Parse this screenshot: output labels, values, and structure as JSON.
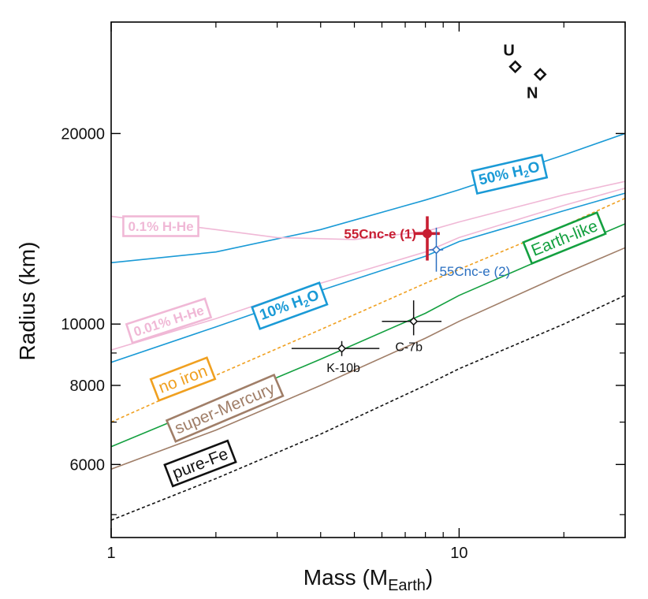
{
  "chart_data": {
    "type": "line",
    "title": "",
    "xlabel": "Mass (M",
    "xlabel_sub": "Earth",
    "xlabel_close": ")",
    "ylabel": "Radius (km)",
    "xscale": "log",
    "yscale": "log",
    "xlim": [
      1,
      30
    ],
    "ylim": [
      4600,
      30000
    ],
    "x_tick_labels": [
      {
        "value": 1,
        "label": "1"
      },
      {
        "value": 10,
        "label": "10"
      }
    ],
    "x_minor_ticks": [
      2,
      3,
      4,
      5,
      6,
      7,
      8,
      9,
      20,
      30
    ],
    "y_tick_labels": [
      {
        "value": 6000,
        "label": "6000"
      },
      {
        "value": 8000,
        "label": "8000"
      },
      {
        "value": 10000,
        "label": "10000"
      },
      {
        "value": 20000,
        "label": "20000"
      }
    ],
    "y_minor_ticks": [
      5000,
      7000,
      9000
    ],
    "grid": false,
    "series": [
      {
        "name": "50% H2O",
        "label_main": "50% H",
        "label_sub": "2",
        "label_end": "O",
        "color": "#1a9ad6",
        "dash": false,
        "x": [
          1,
          2,
          4,
          8,
          10,
          20,
          30
        ],
        "y": [
          12500,
          13000,
          14100,
          15700,
          16300,
          18500,
          20000
        ]
      },
      {
        "name": "0.1% H-He",
        "label_main": "0.1% H-He",
        "color": "#f0b8d6",
        "dash": false,
        "x": [
          1,
          2,
          3,
          5,
          8,
          10,
          20,
          30
        ],
        "y": [
          14800,
          14100,
          13700,
          13600,
          14000,
          14500,
          16000,
          16800
        ]
      },
      {
        "name": "0.01% H-He",
        "label_main": "0.01% H-He",
        "color": "#f0b8d6",
        "dash": false,
        "x": [
          1,
          2,
          4,
          8,
          10,
          20,
          30
        ],
        "y": [
          9100,
          10200,
          11600,
          13000,
          13700,
          15400,
          16400
        ]
      },
      {
        "name": "10% H2O",
        "label_main": "10% H",
        "label_sub": "2",
        "label_end": "O",
        "color": "#1a9ad6",
        "dash": false,
        "x": [
          1,
          2,
          4,
          8,
          10,
          20,
          30
        ],
        "y": [
          8700,
          9900,
          11300,
          12800,
          13500,
          15100,
          16100
        ]
      },
      {
        "name": "no iron",
        "label_main": "no iron",
        "color": "#f0a020",
        "dash": true,
        "x": [
          1,
          2,
          4,
          8,
          10,
          20,
          30
        ],
        "y": [
          7000,
          8300,
          9800,
          11600,
          12200,
          14300,
          15800
        ]
      },
      {
        "name": "Earth-like",
        "label_main": "Earth-like",
        "color": "#14a040",
        "dash": false,
        "x": [
          1,
          2,
          4,
          8,
          10,
          20,
          30
        ],
        "y": [
          6400,
          7500,
          8800,
          10400,
          11100,
          13100,
          14400
        ]
      },
      {
        "name": "super-Mercury",
        "label_main": "super-Mercury",
        "color": "#a07e68",
        "dash": false,
        "x": [
          1,
          2,
          4,
          8,
          10,
          20,
          30
        ],
        "y": [
          5900,
          6800,
          8000,
          9500,
          10100,
          12000,
          13200
        ]
      },
      {
        "name": "pure-Fe",
        "label_main": "pure-Fe",
        "color": "#111111",
        "dash": true,
        "x": [
          1,
          2,
          4,
          8,
          10,
          20,
          30
        ],
        "y": [
          4900,
          5700,
          6700,
          8000,
          8500,
          10000,
          11100
        ]
      }
    ],
    "points": [
      {
        "name": "55Cnc-e (1)",
        "x": 8.1,
        "y": 13900,
        "xerr": [
          7.4,
          8.8
        ],
        "yerr": [
          12600,
          14800
        ],
        "color": "#c81e32",
        "marker": "circle"
      },
      {
        "name": "55Cnc-e (2)",
        "x": 8.6,
        "y": 13100,
        "xerr": [
          8.2,
          9.0
        ],
        "yerr": [
          12100,
          14200
        ],
        "color": "#2a6fc0",
        "marker": "diamond"
      },
      {
        "name": "C-7b",
        "x": 7.4,
        "y": 10100,
        "xerr": [
          6.0,
          8.9
        ],
        "yerr": [
          9600,
          10900
        ],
        "color": "#111111",
        "marker": "diamond"
      },
      {
        "name": "K-10b",
        "x": 4.6,
        "y": 9150,
        "xerr": [
          3.3,
          5.9
        ],
        "yerr": [
          8900,
          9400
        ],
        "color": "#111111",
        "marker": "diamond"
      },
      {
        "name": "U",
        "x": 14.5,
        "y": 25500,
        "color": "#111111",
        "marker": "diamond"
      },
      {
        "name": "N",
        "x": 17.1,
        "y": 24800,
        "color": "#111111",
        "marker": "diamond"
      }
    ]
  }
}
